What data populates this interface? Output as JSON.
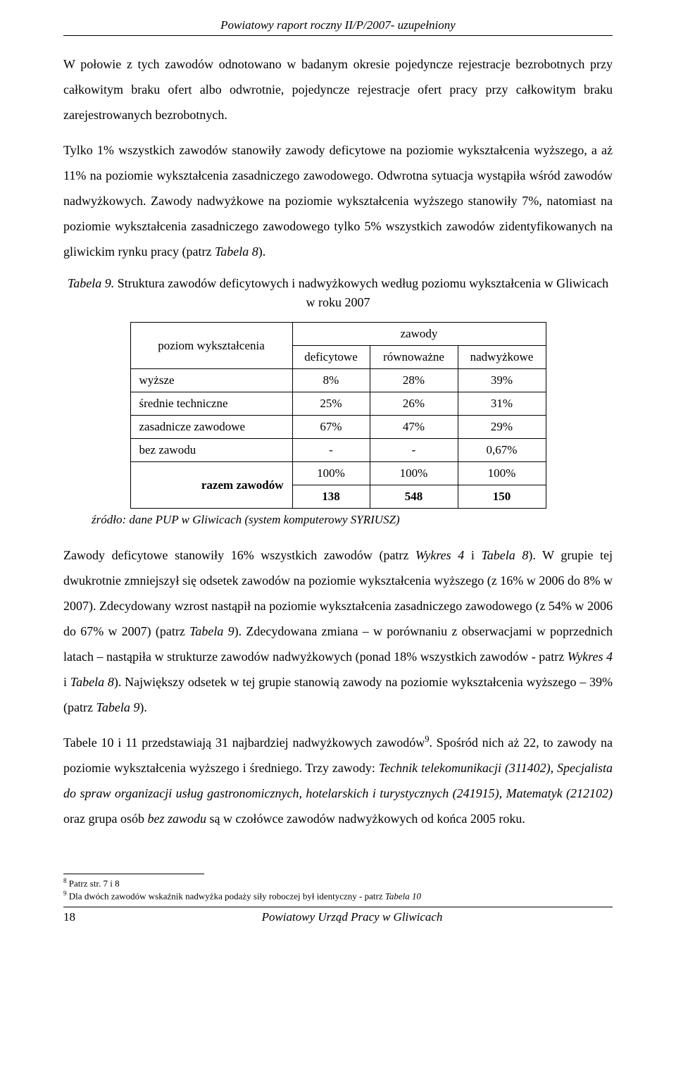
{
  "running_head": "Powiatowy raport roczny II/P/2007- uzupełniony",
  "paragraphs": {
    "p1": "W połowie z tych zawodów odnotowano w badanym okresie pojedyncze rejestracje bezrobotnych przy całkowitym braku ofert albo odwrotnie, pojedyncze rejestracje ofert pracy przy całkowitym braku zarejestrowanych bezrobotnych.",
    "p2a": "Tylko 1% wszystkich zawodów stanowiły zawody deficytowe na poziomie wykształcenia wyższego, a aż 11% na poziomie wykształcenia zasadniczego zawodowego. Odwrotna sytuacja wystąpiła wśród zawodów nadwyżkowych. Zawody nadwyżkowe na poziomie wykształcenia wyższego stanowiły 7%, natomiast na poziomie wykształcenia zasadniczego zawodowego tylko 5% wszystkich zawodów zidentyfikowanych na gliwickim rynku pracy (patrz ",
    "p2b": "Tabela 8",
    "p2c": ").",
    "caption_a": "Tabela 9.",
    "caption_b": " Struktura zawodów deficytowych i nadwyżkowych według poziomu wykształcenia w Gliwicach w roku 2007",
    "source": "źródło: dane PUP w Gliwicach (system komputerowy SYRIUSZ)",
    "p3a": "Zawody deficytowe stanowiły 16% wszystkich zawodów (patrz ",
    "p3b": "Wykres 4",
    "p3c": " i ",
    "p3d": "Tabela 8",
    "p3e": "). W grupie tej dwukrotnie zmniejszył się odsetek zawodów na poziomie wykształcenia wyższego (z 16% w 2006 do 8% w 2007). Zdecydowany wzrost nastąpił na poziomie wykształcenia zasadniczego zawodowego (z 54% w 2006 do 67% w 2007) (patrz ",
    "p3f": "Tabela 9",
    "p3g": "). Zdecydowana zmiana – w porównaniu z obserwacjami w poprzednich latach – nastąpiła w strukturze zawodów nadwyżkowych (ponad 18% wszystkich zawodów - patrz ",
    "p3h": "Wykres 4",
    "p3i": " i ",
    "p3j": "Tabela 8",
    "p3k": "). Największy odsetek w tej grupie stanowią zawody na poziomie wykształcenia wyższego – 39% (patrz ",
    "p3l": "Tabela 9",
    "p3m": ").",
    "p4a": "Tabele 10 i 11 przedstawiają 31 najbardziej nadwyżkowych zawodów",
    "p4b": ". Spośród nich aż 22, to zawody na poziomie wykształcenia wyższego i średniego. Trzy zawody: ",
    "p4c": "Technik telekomunikacji (311402), Specjalista do spraw organizacji usług gastronomicznych, hotelarskich i turystycznych (241915), Matematyk (212102)",
    "p4d": " oraz grupa osób ",
    "p4e": "bez zawodu",
    "p4f": " są w czołówce zawodów nadwyżkowych od końca 2005 roku."
  },
  "table": {
    "col_header_main": "poziom wykształcenia",
    "col_header_group": "zawody",
    "sub_headers": [
      "deficytowe",
      "równoważne",
      "nadwyżkowe"
    ],
    "rows": [
      {
        "label": "wyższe",
        "vals": [
          "8%",
          "28%",
          "39%"
        ]
      },
      {
        "label": "średnie techniczne",
        "vals": [
          "25%",
          "26%",
          "31%"
        ]
      },
      {
        "label": "zasadnicze zawodowe",
        "vals": [
          "67%",
          "47%",
          "29%"
        ]
      },
      {
        "label": "bez zawodu",
        "vals": [
          "-",
          "-",
          "0,67%"
        ]
      }
    ],
    "total_label": "razem zawodów",
    "total_pct": [
      "100%",
      "100%",
      "100%"
    ],
    "total_count": [
      "138",
      "548",
      "150"
    ],
    "col_widths": [
      "230px",
      "110px",
      "125px",
      "125px"
    ]
  },
  "footnotes": {
    "f8_num": "8",
    "f8_text": " Patrz str. 7 i 8",
    "f9_num": "9",
    "f9_text_a": " Dla dwóch zawodów wskaźnik nadwyżka podaży siły roboczej był identyczny - patrz ",
    "f9_text_b": "Tabela 10"
  },
  "footer": {
    "page": "18",
    "title": "Powiatowy Urząd Pracy w Gliwicach"
  },
  "sup9": "9"
}
